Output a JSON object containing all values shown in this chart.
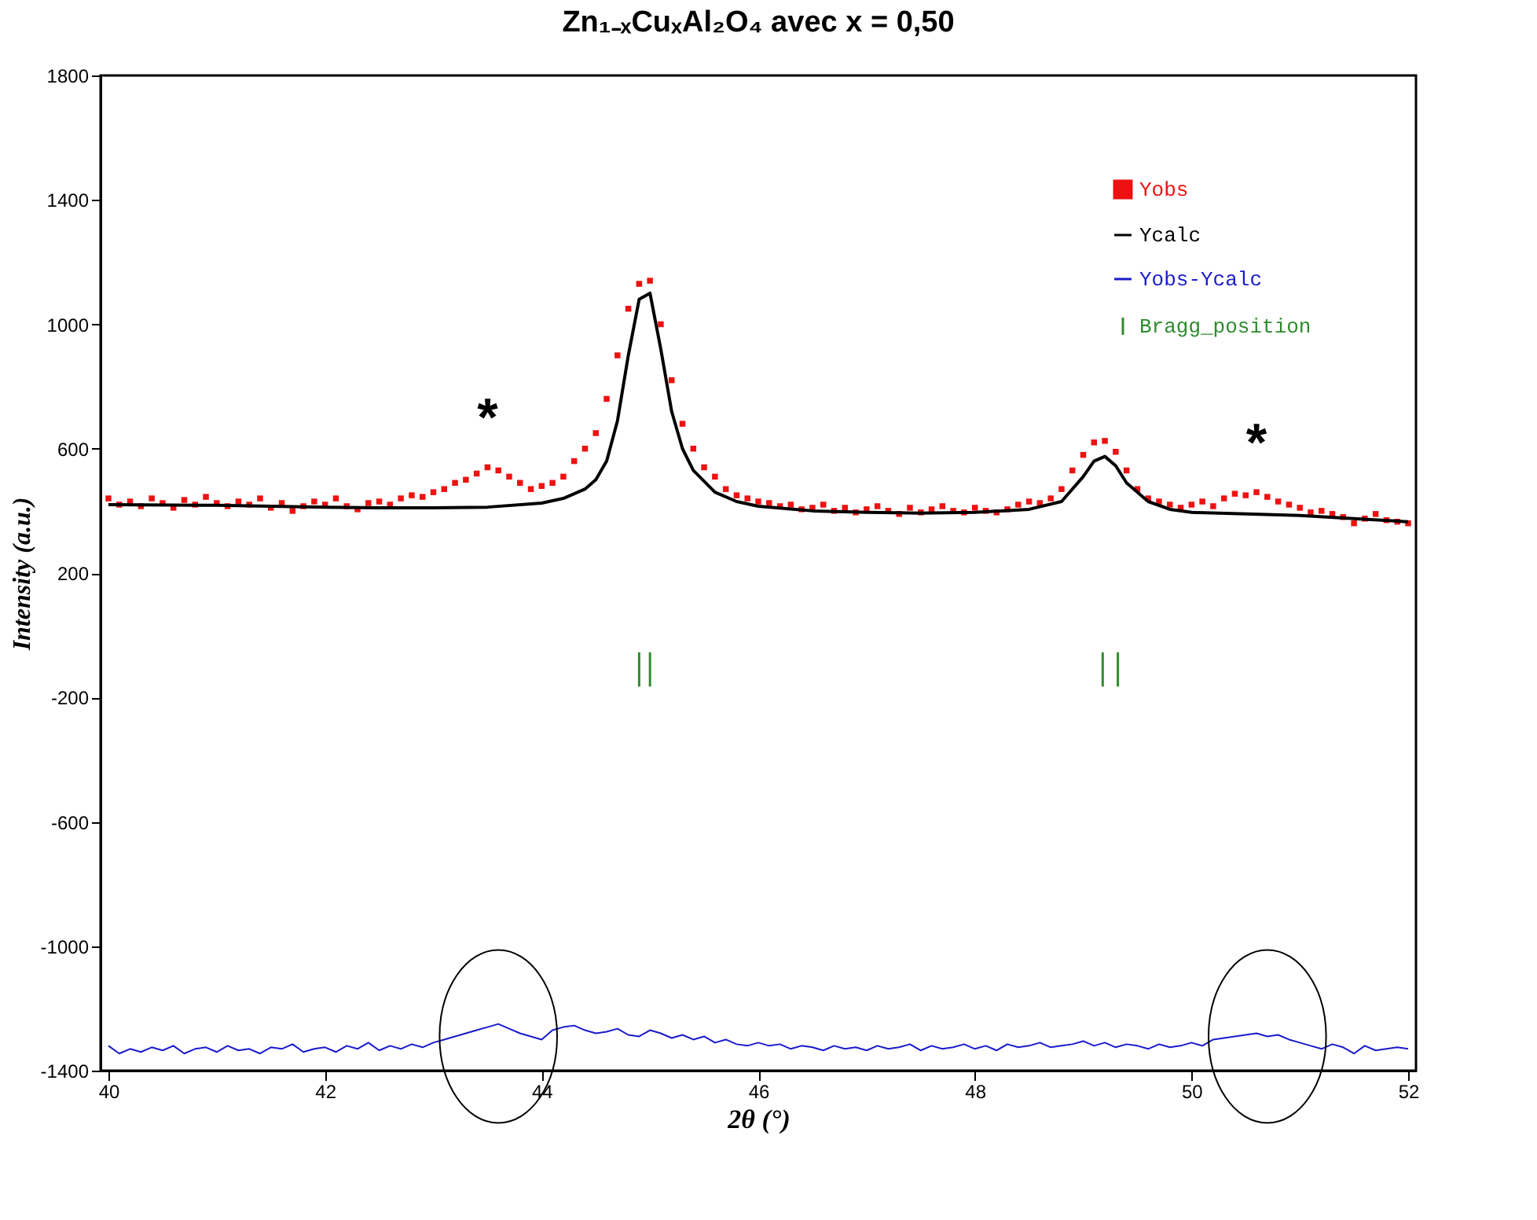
{
  "chart_data": {
    "type": "line",
    "title": "Zn₁₋ₓCuₓAl₂O₄ avec x = 0,50",
    "xlabel": "2θ (°)",
    "ylabel": "Intensity (a.u.)",
    "x": [
      40.0,
      40.1,
      40.2,
      40.3,
      40.4,
      40.5,
      40.6,
      40.7,
      40.8,
      40.9,
      41.0,
      41.1,
      41.2,
      41.3,
      41.4,
      41.5,
      41.6,
      41.7,
      41.8,
      41.9,
      42.0,
      42.1,
      42.2,
      42.3,
      42.4,
      42.5,
      42.6,
      42.7,
      42.8,
      42.9,
      43.0,
      43.1,
      43.2,
      43.3,
      43.4,
      43.5,
      43.6,
      43.7,
      43.8,
      43.9,
      44.0,
      44.1,
      44.2,
      44.3,
      44.4,
      44.5,
      44.6,
      44.7,
      44.8,
      44.9,
      45.0,
      45.1,
      45.2,
      45.3,
      45.4,
      45.5,
      45.6,
      45.7,
      45.8,
      45.9,
      46.0,
      46.1,
      46.2,
      46.3,
      46.4,
      46.5,
      46.6,
      46.7,
      46.8,
      46.9,
      47.0,
      47.1,
      47.2,
      47.3,
      47.4,
      47.5,
      47.6,
      47.7,
      47.8,
      47.9,
      48.0,
      48.1,
      48.2,
      48.3,
      48.4,
      48.5,
      48.6,
      48.7,
      48.8,
      48.9,
      49.0,
      49.1,
      49.2,
      49.3,
      49.4,
      49.5,
      49.6,
      49.7,
      49.8,
      49.9,
      50.0,
      50.1,
      50.2,
      50.3,
      50.4,
      50.5,
      50.6,
      50.7,
      50.8,
      50.9,
      51.0,
      51.1,
      51.2,
      51.3,
      51.4,
      51.5,
      51.6,
      51.7,
      51.8,
      51.9,
      52.0
    ],
    "series": [
      {
        "name": "Yobs",
        "type": "scatter",
        "marker": "square",
        "color": "#ee1111",
        "values": [
          440,
          420,
          430,
          415,
          440,
          425,
          410,
          435,
          420,
          445,
          425,
          415,
          430,
          420,
          440,
          410,
          425,
          400,
          415,
          430,
          420,
          440,
          415,
          405,
          425,
          430,
          420,
          440,
          450,
          445,
          460,
          470,
          490,
          500,
          520,
          540,
          530,
          510,
          490,
          470,
          480,
          490,
          510,
          560,
          600,
          650,
          760,
          900,
          1050,
          1130,
          1140,
          1000,
          820,
          680,
          600,
          540,
          510,
          470,
          450,
          440,
          430,
          425,
          415,
          420,
          405,
          410,
          420,
          400,
          410,
          395,
          405,
          415,
          400,
          390,
          410,
          395,
          405,
          415,
          400,
          395,
          410,
          400,
          395,
          405,
          420,
          430,
          425,
          440,
          470,
          530,
          580,
          620,
          625,
          590,
          530,
          470,
          440,
          430,
          420,
          410,
          420,
          430,
          415,
          440,
          455,
          450,
          460,
          445,
          430,
          420,
          410,
          395,
          400,
          390,
          380,
          360,
          375,
          390,
          370,
          365,
          360
        ]
      },
      {
        "name": "Ycalc",
        "color": "#000000",
        "x": [
          40,
          41,
          42,
          42.5,
          43,
          43.5,
          44,
          44.2,
          44.4,
          44.5,
          44.6,
          44.7,
          44.8,
          44.9,
          45.0,
          45.1,
          45.2,
          45.3,
          45.4,
          45.6,
          45.8,
          46,
          46.5,
          47,
          47.5,
          48,
          48.5,
          48.8,
          49.0,
          49.1,
          49.2,
          49.3,
          49.4,
          49.6,
          49.8,
          50,
          50.5,
          51,
          51.5,
          52
        ],
        "values": [
          420,
          418,
          412,
          410,
          410,
          412,
          425,
          440,
          470,
          500,
          560,
          690,
          900,
          1080,
          1100,
          920,
          720,
          600,
          530,
          460,
          430,
          415,
          400,
          395,
          393,
          395,
          405,
          430,
          510,
          560,
          575,
          545,
          490,
          430,
          405,
          395,
          390,
          385,
          375,
          365
        ]
      },
      {
        "name": "Yobs-Ycalc",
        "color": "#1a1acc",
        "values": [
          -1320,
          -1345,
          -1330,
          -1340,
          -1325,
          -1335,
          -1320,
          -1345,
          -1330,
          -1325,
          -1340,
          -1320,
          -1335,
          -1330,
          -1345,
          -1325,
          -1330,
          -1315,
          -1340,
          -1330,
          -1325,
          -1340,
          -1320,
          -1330,
          -1310,
          -1335,
          -1320,
          -1330,
          -1315,
          -1325,
          -1310,
          -1300,
          -1290,
          -1280,
          -1270,
          -1260,
          -1250,
          -1265,
          -1280,
          -1290,
          -1300,
          -1270,
          -1260,
          -1255,
          -1270,
          -1280,
          -1275,
          -1265,
          -1285,
          -1290,
          -1270,
          -1280,
          -1295,
          -1285,
          -1300,
          -1290,
          -1310,
          -1300,
          -1315,
          -1320,
          -1310,
          -1320,
          -1315,
          -1330,
          -1320,
          -1325,
          -1335,
          -1320,
          -1330,
          -1325,
          -1335,
          -1320,
          -1330,
          -1325,
          -1315,
          -1335,
          -1320,
          -1330,
          -1325,
          -1315,
          -1330,
          -1320,
          -1335,
          -1315,
          -1325,
          -1320,
          -1310,
          -1325,
          -1320,
          -1315,
          -1305,
          -1320,
          -1310,
          -1325,
          -1315,
          -1320,
          -1330,
          -1315,
          -1325,
          -1320,
          -1310,
          -1320,
          -1300,
          -1295,
          -1290,
          -1285,
          -1280,
          -1290,
          -1285,
          -1300,
          -1310,
          -1320,
          -1330,
          -1315,
          -1325,
          -1345,
          -1320,
          -1335,
          -1330,
          -1325,
          -1330
        ]
      },
      {
        "name": "Bragg_position",
        "type": "bar",
        "color": "#2e8b2e",
        "x": [
          44.9,
          45.0,
          49.18,
          49.32
        ],
        "base": [
          -165,
          -165,
          -165,
          -165
        ],
        "values": [
          110,
          110,
          110,
          110
        ]
      }
    ],
    "annotations": [
      {
        "text": "*",
        "x": 43.5,
        "y": 540
      },
      {
        "text": "*",
        "x": 50.6,
        "y": 460
      }
    ],
    "xlim": [
      40,
      52
    ],
    "xticks": [
      40,
      42,
      44,
      46,
      48,
      50,
      52
    ],
    "ylim": [
      -1400,
      1800
    ],
    "yticks": [
      -1400,
      -1000,
      -600,
      -200,
      200,
      600,
      1000,
      1400,
      1800
    ],
    "grid": false,
    "legend": "top right"
  }
}
